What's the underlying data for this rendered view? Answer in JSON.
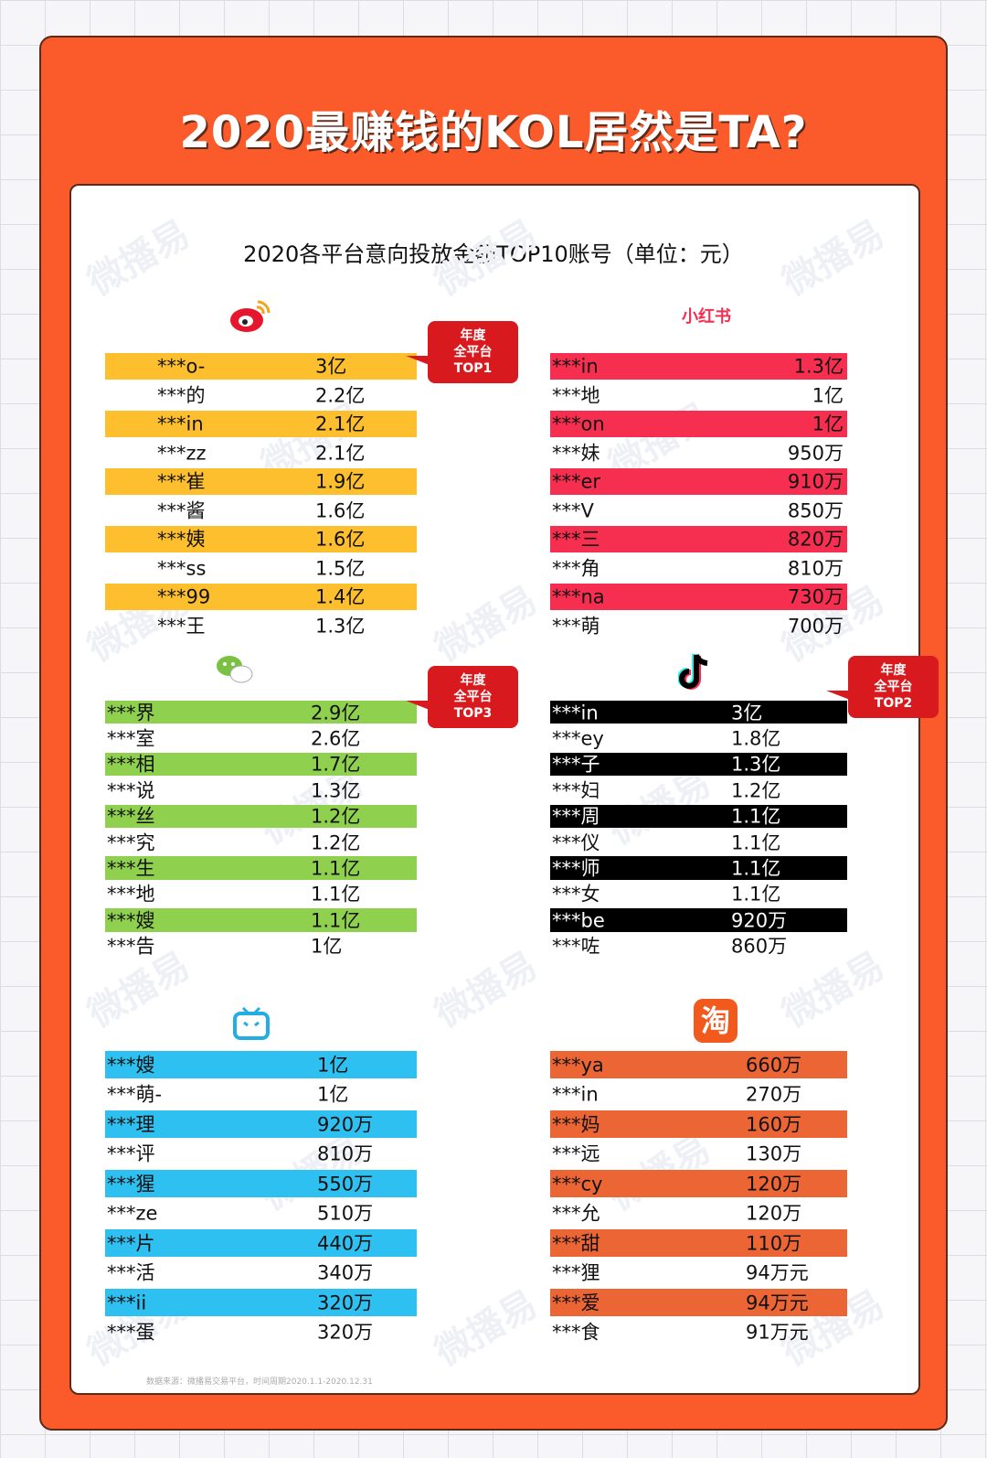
{
  "title": "2020最赚钱的KOL居然是TA?",
  "subtitle": "2020各平台意向投放金额TOP10账号（单位：元）",
  "watermark": "微播易",
  "tables": [
    {
      "rows": [
        [
          "***o-",
          "3亿"
        ],
        [
          "***的",
          "2.2亿"
        ],
        [
          "***in",
          "2.1亿"
        ],
        [
          "***zz",
          "2.1亿"
        ],
        [
          "***崔",
          "1.9亿"
        ],
        [
          "***酱",
          "1.6亿"
        ],
        [
          "***姨",
          "1.6亿"
        ],
        [
          "***ss",
          "1.5亿"
        ],
        [
          "***99",
          "1.4亿"
        ],
        [
          "***王",
          "1.3亿"
        ]
      ],
      "badge": [
        "年度",
        "全平台",
        "TOP1"
      ]
    },
    {
      "label": "小红书",
      "rows": [
        [
          "***in",
          "1.3亿"
        ],
        [
          "***地",
          "1亿"
        ],
        [
          "***on",
          "1亿"
        ],
        [
          "***妹",
          "950万"
        ],
        [
          "***er",
          "910万"
        ],
        [
          "***V",
          "850万"
        ],
        [
          "***三",
          "820万"
        ],
        [
          "***角",
          "810万"
        ],
        [
          "***na",
          "730万"
        ],
        [
          "***萌",
          "700万"
        ]
      ]
    },
    {
      "rows": [
        [
          "***界",
          "2.9亿"
        ],
        [
          "***室",
          "2.6亿"
        ],
        [
          "***相",
          "1.7亿"
        ],
        [
          "***说",
          "1.3亿"
        ],
        [
          "***丝",
          "1.2亿"
        ],
        [
          "***究",
          "1.2亿"
        ],
        [
          "***生",
          "1.1亿"
        ],
        [
          "***地",
          "1.1亿"
        ],
        [
          "***嫂",
          "1.1亿"
        ],
        [
          "***告",
          "1亿"
        ]
      ],
      "badge": [
        "年度",
        "全平台",
        "TOP3"
      ]
    },
    {
      "rows": [
        [
          "***in",
          "3亿"
        ],
        [
          "***ey",
          "1.8亿"
        ],
        [
          "***子",
          "1.3亿"
        ],
        [
          "***妇",
          "1.2亿"
        ],
        [
          "***周",
          "1.1亿"
        ],
        [
          "***仪",
          "1.1亿"
        ],
        [
          "***师",
          "1.1亿"
        ],
        [
          "***女",
          "1.1亿"
        ],
        [
          "***be",
          "920万"
        ],
        [
          "***咗",
          "860万"
        ]
      ],
      "badge": [
        "年度",
        "全平台",
        "TOP2"
      ]
    },
    {
      "rows": [
        [
          "***嫂",
          "1亿"
        ],
        [
          "***萌-",
          "1亿"
        ],
        [
          "***理",
          "920万"
        ],
        [
          "***评",
          "810万"
        ],
        [
          "***猩",
          "550万"
        ],
        [
          "***ze",
          "510万"
        ],
        [
          "***片",
          "440万"
        ],
        [
          "***活",
          "340万"
        ],
        [
          "***ii",
          "320万"
        ],
        [
          "***蛋",
          "320万"
        ]
      ]
    },
    {
      "icon_text": "淘",
      "rows": [
        [
          "***ya",
          "660万"
        ],
        [
          "***in",
          "270万"
        ],
        [
          "***妈",
          "160万"
        ],
        [
          "***远",
          "130万"
        ],
        [
          "***cy",
          "120万"
        ],
        [
          "***允",
          "120万"
        ],
        [
          "***甜",
          "110万"
        ],
        [
          "***狸",
          "94万元"
        ],
        [
          "***爱",
          "94万元"
        ],
        [
          "***食",
          "91万元"
        ]
      ]
    }
  ],
  "source": "数据来源：微播易交易平台，时间周期2020.1.1-2020.12.31"
}
